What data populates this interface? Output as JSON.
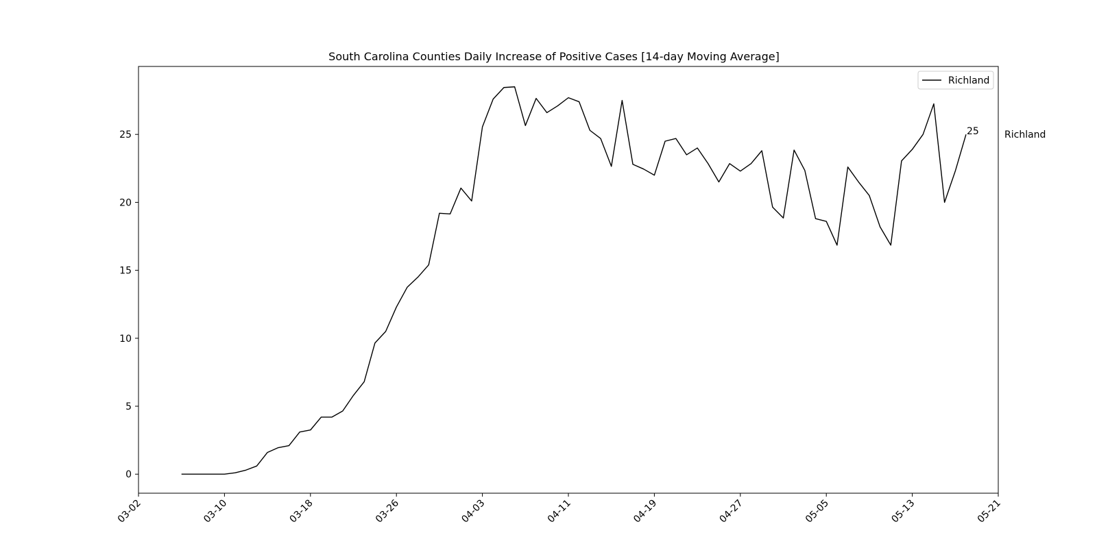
{
  "chart_data": {
    "type": "line",
    "title": "South Carolina Counties Daily Increase of Positive Cases [14-day Moving Average]",
    "xlabel": "",
    "ylabel": "",
    "x_start": "2020-03-06",
    "xlim": [
      "2020-03-02",
      "2020-05-21"
    ],
    "xticks": [
      "03-02",
      "03-10",
      "03-18",
      "03-26",
      "04-03",
      "04-11",
      "04-19",
      "04-27",
      "05-05",
      "05-13",
      "05-21"
    ],
    "ylim": [
      -1.4,
      30
    ],
    "yticks": [
      0,
      5,
      10,
      15,
      20,
      25
    ],
    "grid": false,
    "legend": {
      "position": "top-right",
      "entries": [
        "Richland"
      ]
    },
    "series": [
      {
        "name": "Richland",
        "color": "#000000",
        "values": [
          0,
          0,
          0,
          0,
          0,
          0.1,
          0.3,
          0.6,
          1.6,
          1.95,
          2.1,
          3.1,
          3.25,
          4.2,
          4.2,
          4.65,
          5.8,
          6.8,
          9.65,
          10.5,
          12.3,
          13.75,
          14.5,
          15.4,
          19.2,
          19.15,
          21.05,
          20.1,
          25.55,
          27.6,
          28.45,
          28.5,
          25.65,
          27.65,
          26.6,
          27.1,
          27.7,
          27.4,
          25.3,
          24.7,
          22.65,
          27.5,
          22.8,
          22.45,
          22.0,
          24.5,
          24.7,
          23.5,
          24.0,
          22.85,
          21.5,
          22.85,
          22.3,
          22.85,
          23.8,
          19.65,
          18.85,
          23.85,
          22.35,
          18.8,
          18.6,
          16.85,
          22.6,
          21.5,
          20.5,
          18.2,
          16.85,
          23.05,
          23.9,
          25.0,
          27.25,
          20.0,
          22.3,
          25.0
        ]
      }
    ],
    "annotations": [
      {
        "text": "25",
        "x": "2020-05-18",
        "y": 25
      },
      {
        "text": "Richland",
        "x": "2020-05-21",
        "y": 25
      }
    ]
  }
}
